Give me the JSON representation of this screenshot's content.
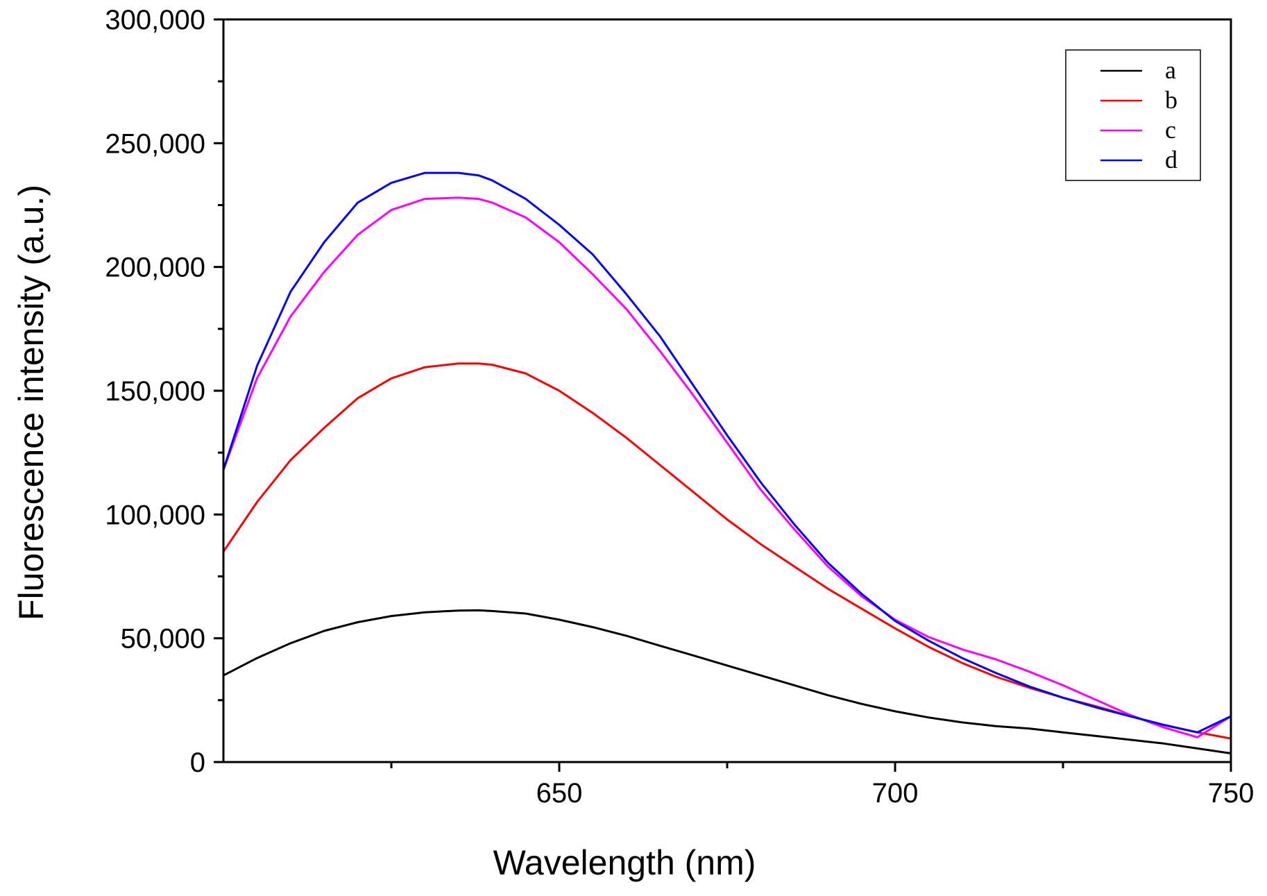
{
  "chart_data": {
    "type": "line",
    "title": "",
    "xlabel": "Wavelength (nm)",
    "ylabel": "Fluorescence intensity (a.u.)",
    "xlim": [
      600,
      750
    ],
    "ylim": [
      0,
      300000
    ],
    "x_ticks": [
      650,
      700,
      750
    ],
    "x_tick_labels": [
      "650",
      "700",
      "750"
    ],
    "x_minor_ticks": [
      625,
      675,
      725
    ],
    "y_ticks": [
      0,
      50000,
      100000,
      150000,
      200000,
      250000,
      300000
    ],
    "y_tick_labels": [
      "0",
      "50,000",
      "100,000",
      "150,000",
      "200,000",
      "250,000",
      "300,000"
    ],
    "grid": false,
    "legend_position": "top-right",
    "x": [
      600,
      605,
      610,
      615,
      620,
      625,
      630,
      635,
      638,
      640,
      645,
      650,
      655,
      660,
      665,
      670,
      675,
      680,
      685,
      690,
      695,
      700,
      705,
      710,
      715,
      720,
      725,
      730,
      735,
      740,
      745,
      750
    ],
    "series": [
      {
        "name": "a",
        "color": "#000000",
        "values": [
          35000,
          42000,
          48000,
          53000,
          56500,
          59000,
          60500,
          61200,
          61300,
          61000,
          60000,
          57500,
          54500,
          51000,
          47000,
          43000,
          39000,
          35000,
          31000,
          27000,
          23500,
          20500,
          18000,
          16000,
          14500,
          13500,
          12000,
          10500,
          9000,
          7500,
          5500,
          3500
        ]
      },
      {
        "name": "b",
        "color": "#ff0000",
        "values": [
          85000,
          105000,
          122000,
          135000,
          147000,
          155000,
          159500,
          161000,
          161000,
          160500,
          157000,
          150000,
          141000,
          131000,
          120000,
          109000,
          98000,
          88000,
          79000,
          70000,
          62000,
          54000,
          46500,
          40000,
          34500,
          30000,
          26000,
          22500,
          18500,
          15000,
          12000,
          9500
        ]
      },
      {
        "name": "c",
        "color": "#ff00ff",
        "values": [
          118000,
          155000,
          180000,
          198000,
          213000,
          223000,
          227500,
          228000,
          227500,
          226000,
          220000,
          210000,
          197000,
          183000,
          166000,
          148000,
          129000,
          110000,
          94000,
          79000,
          67000,
          57500,
          50500,
          45500,
          41500,
          36500,
          31000,
          25000,
          19000,
          14000,
          10000,
          18500
        ]
      },
      {
        "name": "d",
        "color": "#0000ff",
        "values": [
          118000,
          160000,
          190000,
          210000,
          226000,
          234000,
          238000,
          238000,
          237000,
          235000,
          227500,
          217000,
          205000,
          189000,
          172000,
          152000,
          132000,
          113000,
          96000,
          80500,
          68000,
          57000,
          49000,
          42000,
          36000,
          30500,
          26000,
          22000,
          18500,
          15000,
          12000,
          18500
        ]
      }
    ]
  }
}
